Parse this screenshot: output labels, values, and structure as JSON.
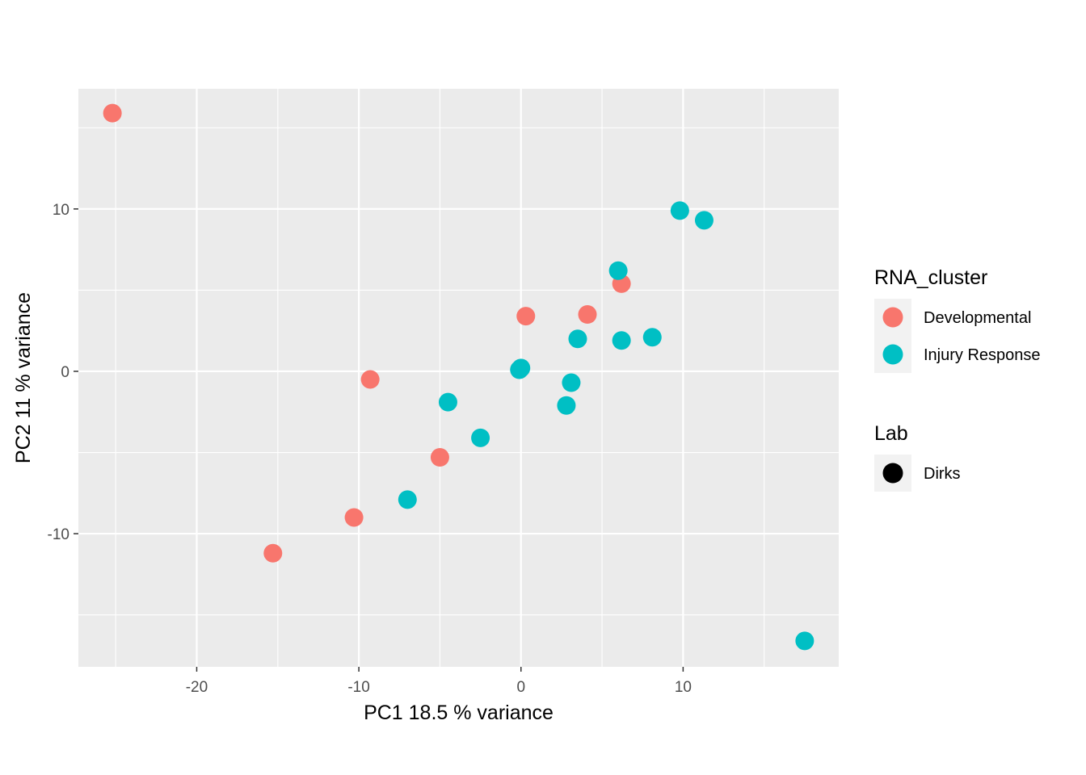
{
  "chart_data": {
    "type": "scatter",
    "title": "",
    "xlabel": "PC1 18.5 % variance",
    "ylabel": "PC2 11 % variance",
    "xlim": [
      -27.3,
      19.6
    ],
    "ylim": [
      -18.2,
      17.4
    ],
    "x_ticks": [
      -20,
      -10,
      0,
      10
    ],
    "x_tick_labels": [
      "-20",
      "-10",
      "0",
      "10"
    ],
    "y_ticks": [
      -10,
      0,
      10
    ],
    "y_tick_labels": [
      "-10",
      "0",
      "10"
    ],
    "grid": true,
    "legend_position": "right",
    "series": [
      {
        "name": "Developmental",
        "color": "#F8766D",
        "x": [
          -25.2,
          -15.3,
          -10.3,
          -9.3,
          -5.0,
          0.3,
          4.1,
          6.2
        ],
        "y": [
          15.9,
          -11.2,
          -9.0,
          -0.5,
          -5.3,
          3.4,
          3.5,
          5.4
        ]
      },
      {
        "name": "Injury Response",
        "color": "#00BFC4",
        "x": [
          -7.0,
          -4.5,
          -2.5,
          -0.1,
          0.0,
          2.8,
          3.1,
          3.5,
          6.0,
          6.2,
          8.1,
          9.8,
          11.3,
          17.5
        ],
        "y": [
          -7.9,
          -1.9,
          -4.1,
          0.1,
          0.2,
          -2.1,
          -0.7,
          2.0,
          6.2,
          1.9,
          2.1,
          9.9,
          9.3,
          -16.6
        ]
      }
    ],
    "legends": [
      {
        "title": "RNA_cluster",
        "entries": [
          {
            "label": "Developmental",
            "color": "#F8766D"
          },
          {
            "label": "Injury Response",
            "color": "#00BFC4"
          }
        ]
      },
      {
        "title": "Lab",
        "entries": [
          {
            "label": "Dirks",
            "color": "#000000"
          }
        ]
      }
    ],
    "panel_color": "#EBEBEB",
    "grid_color": "#FFFFFF"
  }
}
